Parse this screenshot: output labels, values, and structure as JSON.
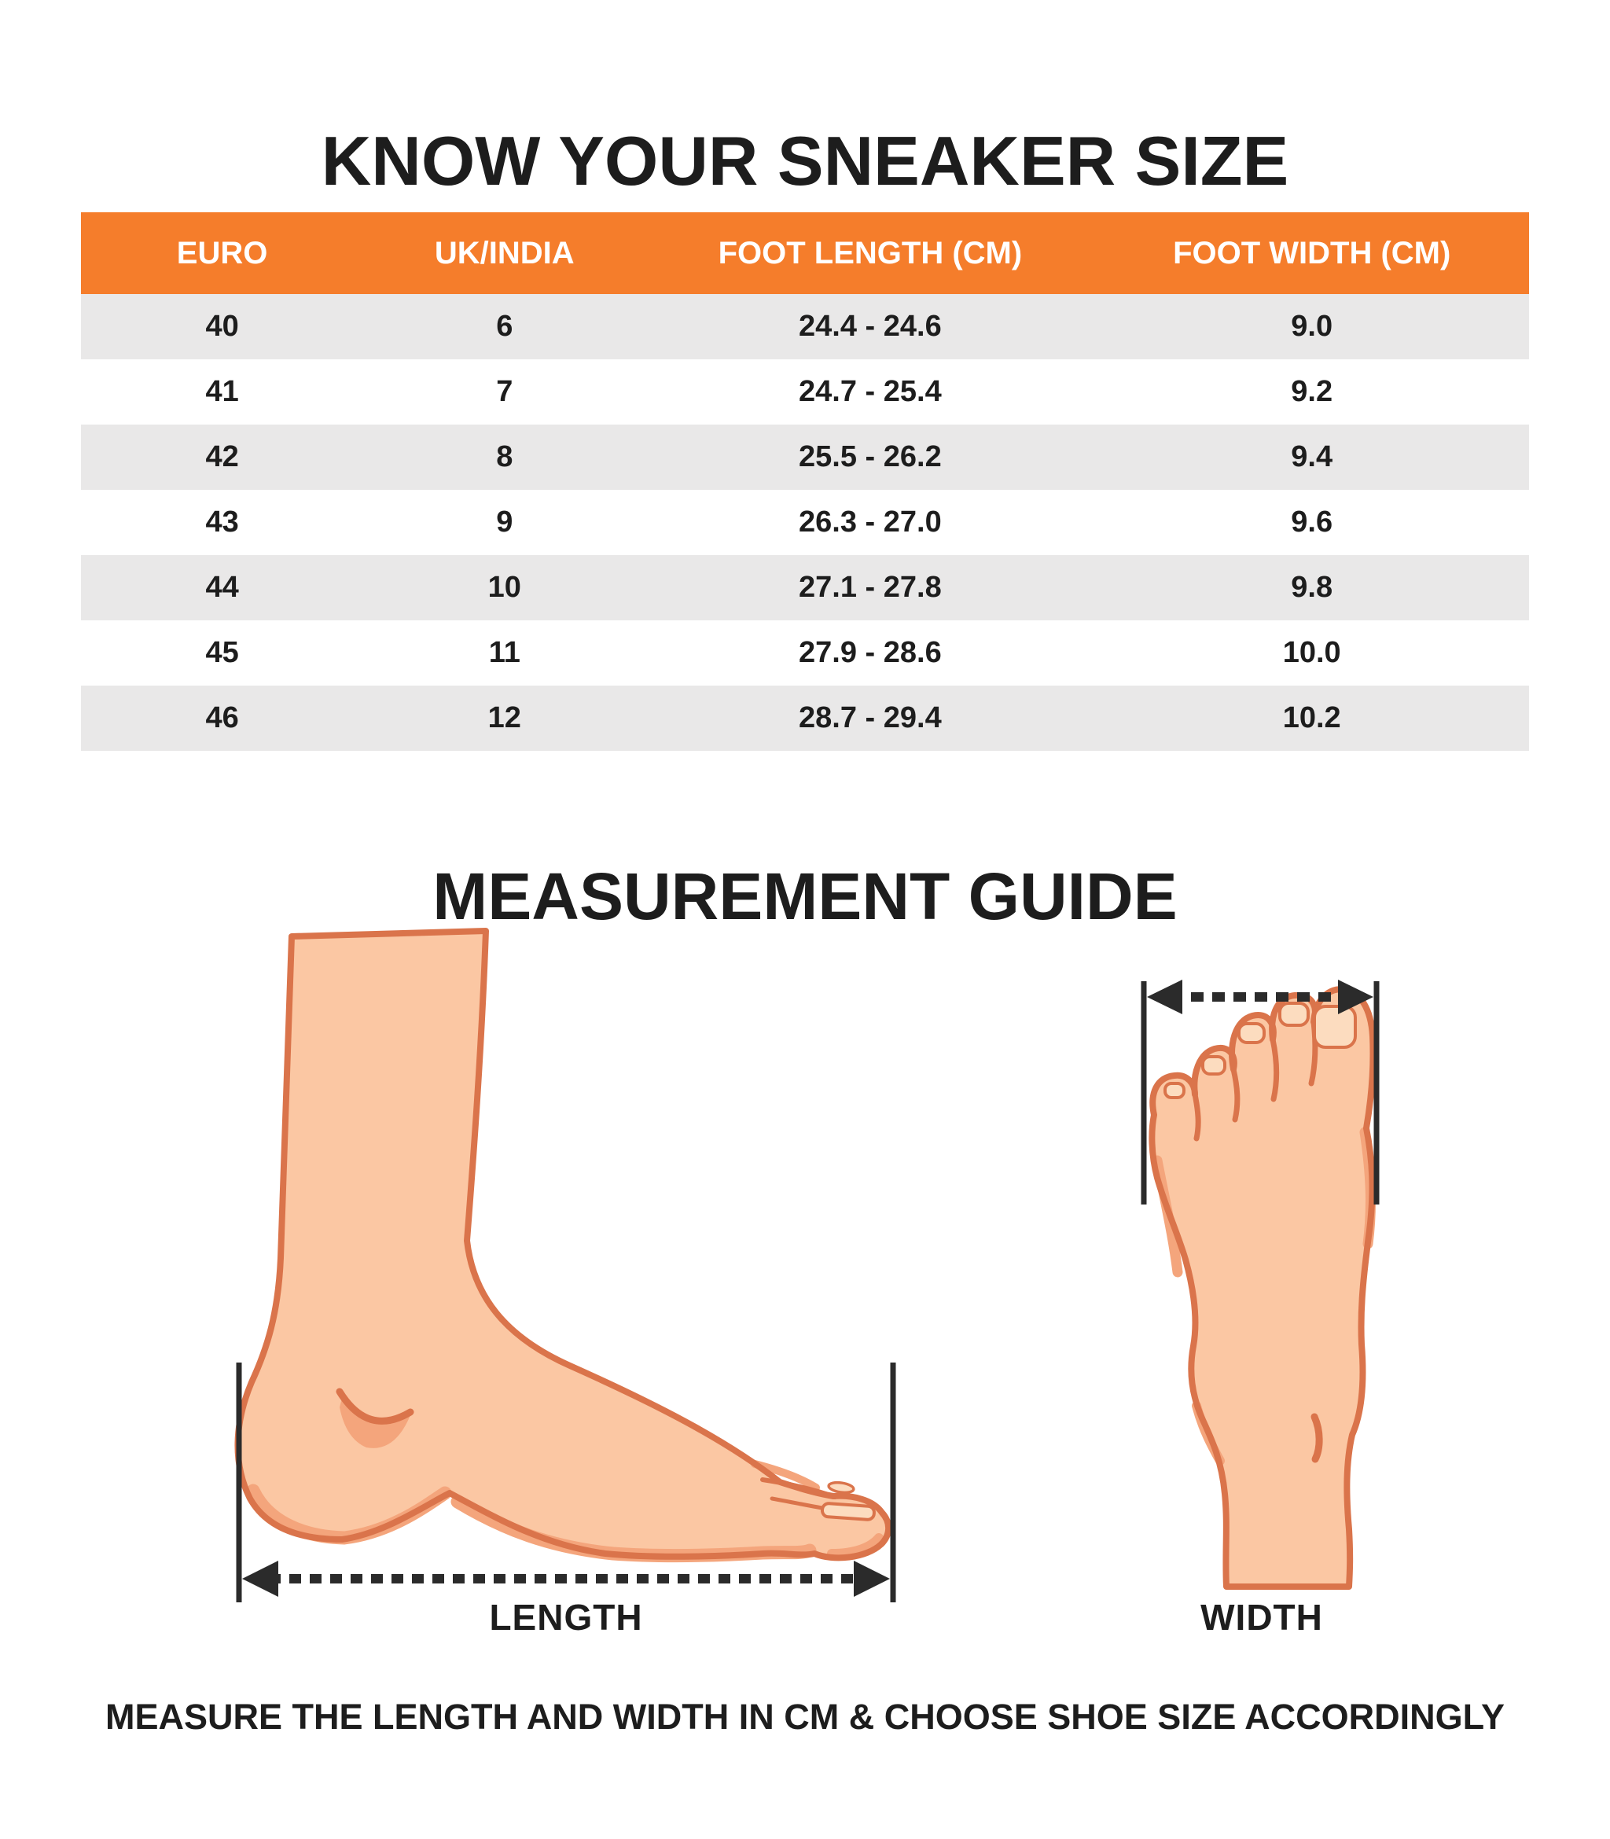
{
  "page": {
    "title": "KNOW YOUR SNEAKER SIZE",
    "footer_note": "MEASURE THE LENGTH AND WIDTH IN CM & CHOOSE SHOE SIZE ACCORDINGLY"
  },
  "size_table": {
    "headers": [
      "EURO",
      "UK/INDIA",
      "FOOT LENGTH (CM)",
      "FOOT WIDTH (CM)"
    ],
    "rows": [
      [
        "40",
        "6",
        "24.4 - 24.6",
        "9.0"
      ],
      [
        "41",
        "7",
        "24.7 - 25.4",
        "9.2"
      ],
      [
        "42",
        "8",
        "25.5 - 26.2",
        "9.4"
      ],
      [
        "43",
        "9",
        "26.3 - 27.0",
        "9.6"
      ],
      [
        "44",
        "10",
        "27.1 - 27.8",
        "9.8"
      ],
      [
        "45",
        "11",
        "27.9 - 28.6",
        "10.0"
      ],
      [
        "46",
        "12",
        "28.7 - 29.4",
        "10.2"
      ]
    ]
  },
  "chart_data": {
    "type": "table",
    "title": "KNOW YOUR SNEAKER SIZE",
    "columns": [
      "EURO",
      "UK/INDIA",
      "FOOT LENGTH (CM)",
      "FOOT WIDTH (CM)"
    ],
    "rows": [
      [
        40,
        6,
        "24.4 - 24.6",
        9.0
      ],
      [
        41,
        7,
        "24.7 - 25.4",
        9.2
      ],
      [
        42,
        8,
        "25.5 - 26.2",
        9.4
      ],
      [
        43,
        9,
        "26.3 - 27.0",
        9.6
      ],
      [
        44,
        10,
        "27.1 - 27.8",
        9.8
      ],
      [
        45,
        11,
        "27.9 - 28.6",
        10.0
      ],
      [
        46,
        12,
        "28.7 - 29.4",
        10.2
      ]
    ]
  },
  "measurement_guide": {
    "title": "MEASUREMENT GUIDE",
    "length_label": "LENGTH",
    "width_label": "WIDTH",
    "icons": [
      "foot-side-view-illustration",
      "foot-top-view-illustration",
      "length-dimension-arrow",
      "width-dimension-arrow"
    ]
  },
  "colors": {
    "accent_orange": "#F57D2B",
    "row_gray": "#E9E8E8",
    "text_dark": "#1D1D1D",
    "header_text": "#FFFFFF",
    "skin": "#FBC7A3",
    "skin_outline": "#DA744B",
    "skin_shade": "#F4A57C",
    "nail": "#FCDCBF",
    "arrow": "#2B2B2B"
  }
}
